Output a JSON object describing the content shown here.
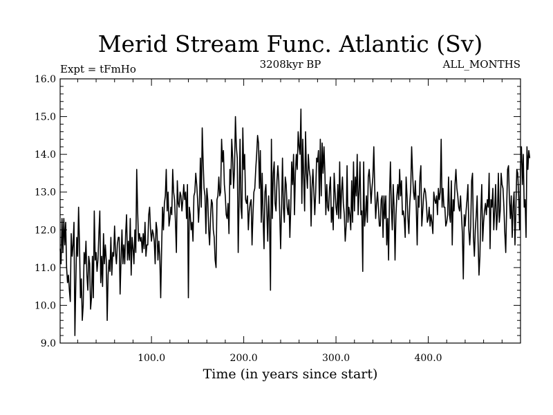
{
  "chart_data": {
    "type": "line",
    "title": "Merid Stream Func. Atlantic (Sv)",
    "subtitle_left": "Expt = tFmHo",
    "subtitle_center": "3208kyr BP",
    "subtitle_right": "ALL_MONTHS",
    "xlabel": "Time (in years since start)",
    "ylabel": "",
    "xlim": [
      1,
      500
    ],
    "ylim": [
      9.0,
      16.0
    ],
    "x_ticks": [
      100,
      200,
      300,
      400
    ],
    "x_tick_labels": [
      "100.0",
      "200.0",
      "300.0",
      "400.0"
    ],
    "y_ticks": [
      9,
      10,
      11,
      12,
      13,
      14,
      15,
      16
    ],
    "y_tick_labels": [
      "9.0",
      "10.0",
      "11.0",
      "12.0",
      "13.0",
      "14.0",
      "15.0",
      "16.0"
    ],
    "series": [
      {
        "name": "Merid Stream Func. Atlantic",
        "x_start": 1,
        "x_step": 1,
        "values": [
          11.5,
          11.1,
          12.3,
          11.4,
          12.3,
          11.6,
          12.2,
          11.0,
          10.6,
          10.8,
          10.4,
          10.1,
          11.9,
          11.3,
          11.6,
          12.2,
          9.2,
          10.6,
          11.8,
          11.3,
          12.6,
          11.6,
          10.2,
          10.7,
          9.6,
          10.0,
          11.4,
          11.1,
          11.7,
          10.8,
          10.4,
          11.3,
          11.1,
          9.9,
          10.2,
          11.3,
          10.2,
          12.5,
          11.2,
          11.4,
          10.9,
          11.2,
          11.9,
          12.5,
          10.6,
          11.3,
          10.5,
          11.9,
          11.1,
          11.6,
          11.2,
          9.6,
          10.8,
          11.2,
          10.9,
          11.8,
          10.8,
          11.4,
          11.3,
          12.1,
          11.4,
          11.1,
          11.6,
          11.8,
          11.8,
          10.3,
          11.2,
          12.0,
          11.1,
          11.6,
          11.1,
          11.9,
          12.4,
          11.2,
          11.7,
          11.2,
          12.3,
          10.8,
          11.8,
          11.5,
          11.1,
          12.0,
          11.4,
          13.6,
          12.5,
          11.7,
          11.9,
          11.7,
          11.8,
          11.4,
          11.9,
          11.5,
          12.2,
          11.3,
          11.6,
          11.6,
          12.4,
          12.6,
          12.0,
          11.7,
          12.0,
          11.9,
          11.7,
          11.1,
          12.2,
          12.0,
          11.2,
          11.7,
          11.3,
          10.2,
          11.5,
          12.6,
          12.0,
          12.7,
          12.9,
          13.6,
          12.5,
          13.0,
          12.1,
          12.3,
          12.6,
          12.4,
          13.6,
          13.0,
          12.8,
          12.2,
          11.4,
          13.3,
          12.7,
          12.6,
          13.0,
          12.9,
          12.5,
          12.8,
          13.2,
          12.8,
          13.0,
          12.3,
          13.2,
          10.2,
          12.6,
          12.4,
          12.0,
          12.2,
          11.7,
          12.9,
          13.0,
          13.5,
          13.2,
          12.8,
          12.2,
          12.7,
          13.9,
          12.6,
          14.7,
          13.8,
          13.1,
          12.9,
          11.9,
          13.1,
          12.8,
          12.0,
          11.6,
          12.3,
          12.8,
          12.7,
          12.0,
          11.8,
          11.2,
          11.0,
          12.8,
          12.9,
          13.4,
          12.9,
          13.0,
          14.4,
          13.8,
          14.1,
          13.2,
          12.9,
          12.4,
          12.3,
          12.7,
          11.9,
          13.6,
          13.2,
          14.4,
          13.9,
          13.1,
          13.6,
          15.0,
          14.2,
          13.9,
          11.4,
          12.8,
          14.4,
          12.6,
          12.3,
          14.7,
          13.6,
          14.0,
          12.8,
          12.7,
          12.9,
          12.0,
          12.5,
          12.7,
          12.8,
          11.6,
          12.4,
          13.0,
          13.1,
          13.6,
          14.0,
          14.5,
          14.3,
          13.1,
          14.1,
          12.2,
          13.5,
          12.3,
          11.5,
          13.0,
          13.2,
          12.5,
          11.7,
          12.9,
          12.2,
          10.4,
          14.4,
          12.3,
          13.5,
          13.8,
          12.7,
          12.5,
          13.3,
          13.7,
          13.3,
          12.4,
          11.5,
          12.6,
          13.9,
          12.6,
          12.2,
          13.4,
          13.2,
          12.6,
          12.4,
          12.8,
          11.8,
          12.6,
          13.8,
          13.2,
          14.0,
          12.4,
          13.5,
          14.0,
          13.6,
          14.6,
          14.2,
          14.0,
          15.2,
          12.7,
          14.4,
          13.4,
          12.5,
          14.6,
          13.5,
          13.1,
          14.0,
          13.6,
          13.4,
          12.1,
          13.1,
          13.6,
          13.0,
          12.4,
          13.0,
          13.9,
          13.8,
          14.1,
          12.7,
          14.4,
          12.9,
          14.3,
          13.5,
          14.2,
          13.5,
          12.4,
          13.2,
          12.6,
          12.5,
          13.1,
          13.4,
          12.2,
          12.6,
          12.0,
          13.5,
          13.0,
          12.6,
          12.4,
          13.2,
          12.3,
          13.8,
          12.3,
          13.0,
          13.4,
          12.7,
          12.4,
          11.7,
          12.1,
          13.7,
          12.2,
          12.6,
          12.4,
          12.0,
          13.3,
          12.2,
          13.8,
          12.5,
          13.4,
          12.9,
          14.0,
          12.4,
          13.0,
          13.8,
          12.4,
          12.5,
          10.9,
          13.8,
          12.1,
          12.4,
          12.9,
          12.2,
          13.4,
          13.6,
          13.2,
          12.7,
          13.1,
          13.4,
          14.2,
          13.1,
          12.3,
          12.7,
          13.0,
          12.6,
          12.1,
          12.1,
          12.8,
          12.9,
          11.8,
          12.9,
          12.3,
          12.9,
          11.6,
          12.3,
          11.2,
          12.9,
          13.8,
          12.6,
          12.0,
          13.2,
          12.6,
          11.2,
          12.4,
          12.9,
          13.2,
          12.8,
          13.6,
          12.9,
          13.3,
          12.4,
          12.5,
          12.3,
          11.8,
          13.4,
          12.9,
          12.3,
          11.9,
          12.7,
          13.1,
          14.2,
          13.5,
          13.0,
          12.8,
          13.3,
          12.6,
          11.6,
          12.9,
          12.6,
          13.4,
          13.7,
          12.1,
          12.5,
          12.9,
          13.1,
          13.0,
          12.7,
          12.2,
          12.3,
          12.6,
          12.1,
          12.4,
          12.2,
          11.9,
          13.0,
          12.8,
          12.7,
          12.9,
          12.4,
          13.1,
          12.8,
          13.0,
          14.4,
          12.6,
          13.1,
          12.6,
          12.6,
          12.1,
          12.2,
          12.4,
          13.4,
          12.4,
          12.2,
          13.3,
          11.6,
          12.8,
          12.5,
          13.2,
          13.6,
          13.1,
          12.9,
          12.6,
          12.5,
          12.9,
          12.4,
          11.9,
          10.7,
          12.4,
          12.1,
          12.5,
          12.8,
          13.2,
          12.0,
          11.6,
          12.1,
          13.3,
          13.5,
          11.8,
          11.3,
          12.0,
          12.4,
          12.9,
          11.7,
          10.8,
          11.3,
          12.5,
          13.2,
          11.7,
          12.2,
          12.5,
          12.7,
          12.4,
          12.8,
          12.6,
          13.5,
          11.5,
          12.8,
          12.6,
          13.1,
          12.0,
          12.5,
          13.2,
          12.0,
          12.4,
          13.5,
          12.2,
          12.5,
          13.5,
          13.2,
          13.1,
          12.6,
          11.9,
          11.4,
          12.6,
          13.6,
          13.7,
          12.8,
          12.3,
          12.9,
          11.8,
          12.6,
          13.0,
          11.6,
          12.6,
          13.6,
          13.5,
          12.9,
          12.0,
          13.7,
          14.2,
          13.2,
          14.0,
          12.6,
          12.8,
          11.8,
          14.2,
          13.6,
          14.1,
          13.9
        ]
      }
    ]
  }
}
